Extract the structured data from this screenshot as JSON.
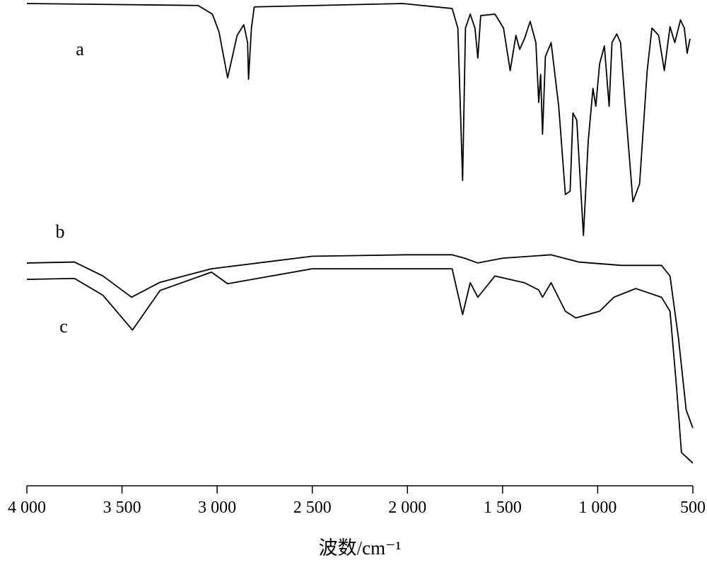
{
  "chart_data": {
    "type": "line",
    "x_label": "波数/cm⁻¹",
    "xlim": [
      4000,
      500
    ],
    "xticks": [
      {
        "value": 4000,
        "label": "4 000"
      },
      {
        "value": 3500,
        "label": "3 500"
      },
      {
        "value": 3000,
        "label": "3 000"
      },
      {
        "value": 2500,
        "label": "2 500"
      },
      {
        "value": 2000,
        "label": "2 000"
      },
      {
        "value": 1500,
        "label": "1 500"
      },
      {
        "value": 1000,
        "label": "1 000"
      },
      500
    ],
    "ylim": [
      0,
      100
    ],
    "series": [
      {
        "name": "a",
        "color": "#000000",
        "x": [
          4000,
          3100,
          3025,
          2990,
          2945,
          2895,
          2860,
          2840,
          2835,
          2820,
          2805,
          2025,
          1765,
          1735,
          1710,
          1695,
          1670,
          1645,
          1630,
          1615,
          1540,
          1495,
          1460,
          1430,
          1410,
          1385,
          1355,
          1325,
          1310,
          1300,
          1290,
          1275,
          1245,
          1205,
          1170,
          1145,
          1130,
          1110,
          1095,
          1075,
          1050,
          1025,
          1010,
          990,
          965,
          940,
          925,
          900,
          880,
          855,
          815,
          780,
          740,
          715,
          680,
          650,
          620,
          595,
          565,
          545,
          530,
          515
        ],
        "values": [
          100,
          99.6,
          97.8,
          94.1,
          84.6,
          93.4,
          95.6,
          91.9,
          84.3,
          94.9,
          99.3,
          100,
          98.97,
          94.9,
          63.3,
          94.9,
          97.8,
          94.9,
          88.7,
          97.5,
          97.8,
          94.9,
          86.1,
          93.4,
          90.5,
          92.7,
          96.3,
          91.9,
          79.5,
          85.3,
          72.9,
          89,
          91.9,
          78.7,
          60.4,
          61.1,
          77.3,
          75.8,
          65.5,
          51.9,
          71.4,
          82.4,
          78.7,
          87.5,
          91.2,
          78.7,
          91.9,
          93.7,
          91.9,
          78.7,
          58.9,
          62.6,
          86.1,
          94.9,
          93.4,
          86.1,
          95.2,
          91.9,
          96.6,
          94.9,
          89.7,
          92.7
        ]
      },
      {
        "name": "b",
        "color": "#000000",
        "x": [
          4000,
          3750,
          3600,
          3450,
          3300,
          3030,
          2500,
          2000,
          1765,
          1700,
          1630,
          1500,
          1245,
          1100,
          875,
          665,
          620,
          575,
          535,
          500
        ],
        "values": [
          46.2,
          46.4,
          43.5,
          39.1,
          42.2,
          45,
          47.6,
          47.9,
          47.9,
          47.2,
          46.2,
          47.2,
          47.9,
          46.4,
          45.7,
          45.7,
          43.5,
          30.4,
          15.7,
          12
        ]
      },
      {
        "name": "c",
        "color": "#000000",
        "x": [
          4000,
          3750,
          3600,
          3445,
          3300,
          3030,
          2945,
          2500,
          2000,
          1765,
          1710,
          1670,
          1630,
          1540,
          1385,
          1310,
          1290,
          1245,
          1170,
          1115,
          990,
          915,
          800,
          665,
          620,
          585,
          560,
          500
        ],
        "values": [
          42.8,
          43,
          39.5,
          32.3,
          40.5,
          44.3,
          41.9,
          45,
          45,
          45,
          35.5,
          42.1,
          39.1,
          43.5,
          42.1,
          40.6,
          39.1,
          42.1,
          36.2,
          34.8,
          36.2,
          39.1,
          40.9,
          39.1,
          36.2,
          20.1,
          6.9,
          4.7
        ]
      }
    ]
  }
}
